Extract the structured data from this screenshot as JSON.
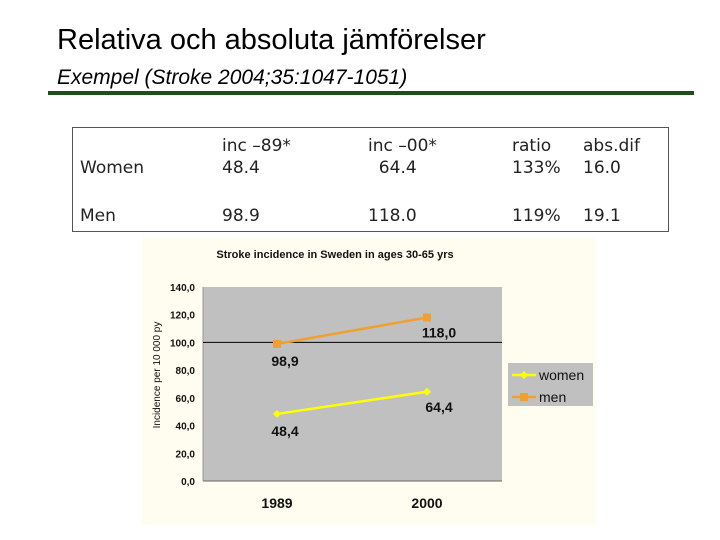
{
  "slide": {
    "title": "Relativa och absoluta jämförelser",
    "subtitle": "Exempel (Stroke 2004;35:1047-1051)"
  },
  "table": {
    "headers": [
      "",
      "inc –89*",
      "inc –00*",
      "ratio",
      "abs.dif"
    ],
    "rows": [
      {
        "label": "Women",
        "inc89": "48.4",
        "inc00": "  64.4",
        "ratio": "133%",
        "absdif": "16.0"
      },
      {
        "label": "Men",
        "inc89": "98.9",
        "inc00": "118.0",
        "ratio": "119%",
        "absdif": "19.1"
      }
    ]
  },
  "chart_data": {
    "type": "line",
    "title": "Stroke incidence in Sweden in ages 30-65 yrs",
    "ylabel": "Incidence per 10 000 py",
    "xlabel": "",
    "categories": [
      "1989",
      "2000"
    ],
    "ylim": [
      0,
      140
    ],
    "yticks": [
      "0,0",
      "20,0",
      "40,0",
      "60,0",
      "80,0",
      "100,0",
      "120,0",
      "140,0"
    ],
    "reference_line": 100,
    "legend_position": "right",
    "series": [
      {
        "name": "women",
        "values": [
          48.4,
          64.4
        ],
        "labels": [
          "48,4",
          "64,4"
        ],
        "color": "#ffff00",
        "marker": "diamond"
      },
      {
        "name": "men",
        "values": [
          98.9,
          118.0
        ],
        "labels": [
          "98,9",
          "118,0"
        ],
        "color": "#f0a030",
        "marker": "square"
      }
    ],
    "colors": {
      "panel": "#fffdf0",
      "plot": "#c0c0c0"
    }
  }
}
